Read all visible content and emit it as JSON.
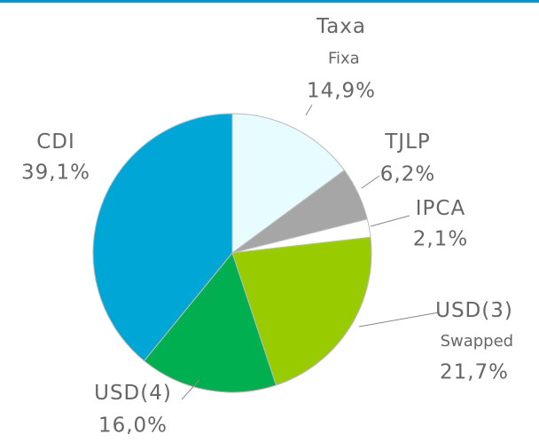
{
  "chart_data": {
    "type": "pie",
    "categories": [
      "Taxa Fixa",
      "TJLP",
      "IPCA",
      "USD(3) Swapped",
      "USD(4)",
      "CDI"
    ],
    "values": [
      14.9,
      6.2,
      2.1,
      21.7,
      16.0,
      39.1
    ],
    "value_labels": [
      "14,9%",
      "6,2%",
      "2,1%",
      "21,7%",
      "16,0%",
      "39,1%"
    ],
    "colors": [
      "#e6fcff",
      "#a6a6a6",
      "#ffffff",
      "#99cc00",
      "#00b050",
      "#00a6d6"
    ]
  }
}
